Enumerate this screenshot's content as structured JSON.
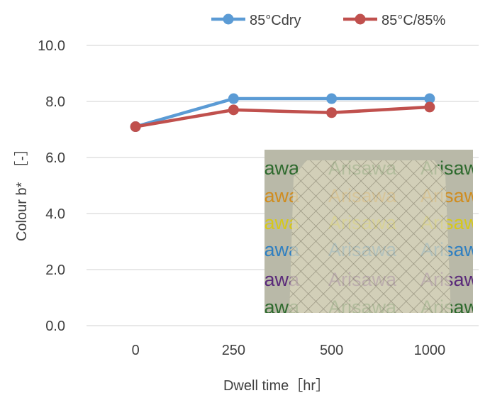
{
  "chart_data": {
    "type": "line",
    "categories": [
      "0",
      "250",
      "500",
      "1000"
    ],
    "series": [
      {
        "name": "85°Cdry",
        "color": "#5b9bd5",
        "values": [
          7.1,
          8.1,
          8.1,
          8.1
        ]
      },
      {
        "name": "85°C/85%",
        "color": "#c0504d",
        "values": [
          7.1,
          7.7,
          7.6,
          7.8
        ]
      }
    ],
    "ylim": [
      0,
      10
    ],
    "yticks": [
      "0.0",
      "2.0",
      "4.0",
      "6.0",
      "8.0",
      "10.0"
    ],
    "xlabel": "Dwell time［hr］",
    "ylabel": "Colour b*　［-］",
    "grid": true,
    "legend_position": "top-right"
  },
  "inset_photo": {
    "word": "Arisawa",
    "row_colors": [
      "#2e6a2e",
      "#d08c1e",
      "#d6c81a",
      "#2f7fc1",
      "#5a2a7a"
    ],
    "background": "#b9b9a8",
    "film_color": "#d8d5bd"
  }
}
